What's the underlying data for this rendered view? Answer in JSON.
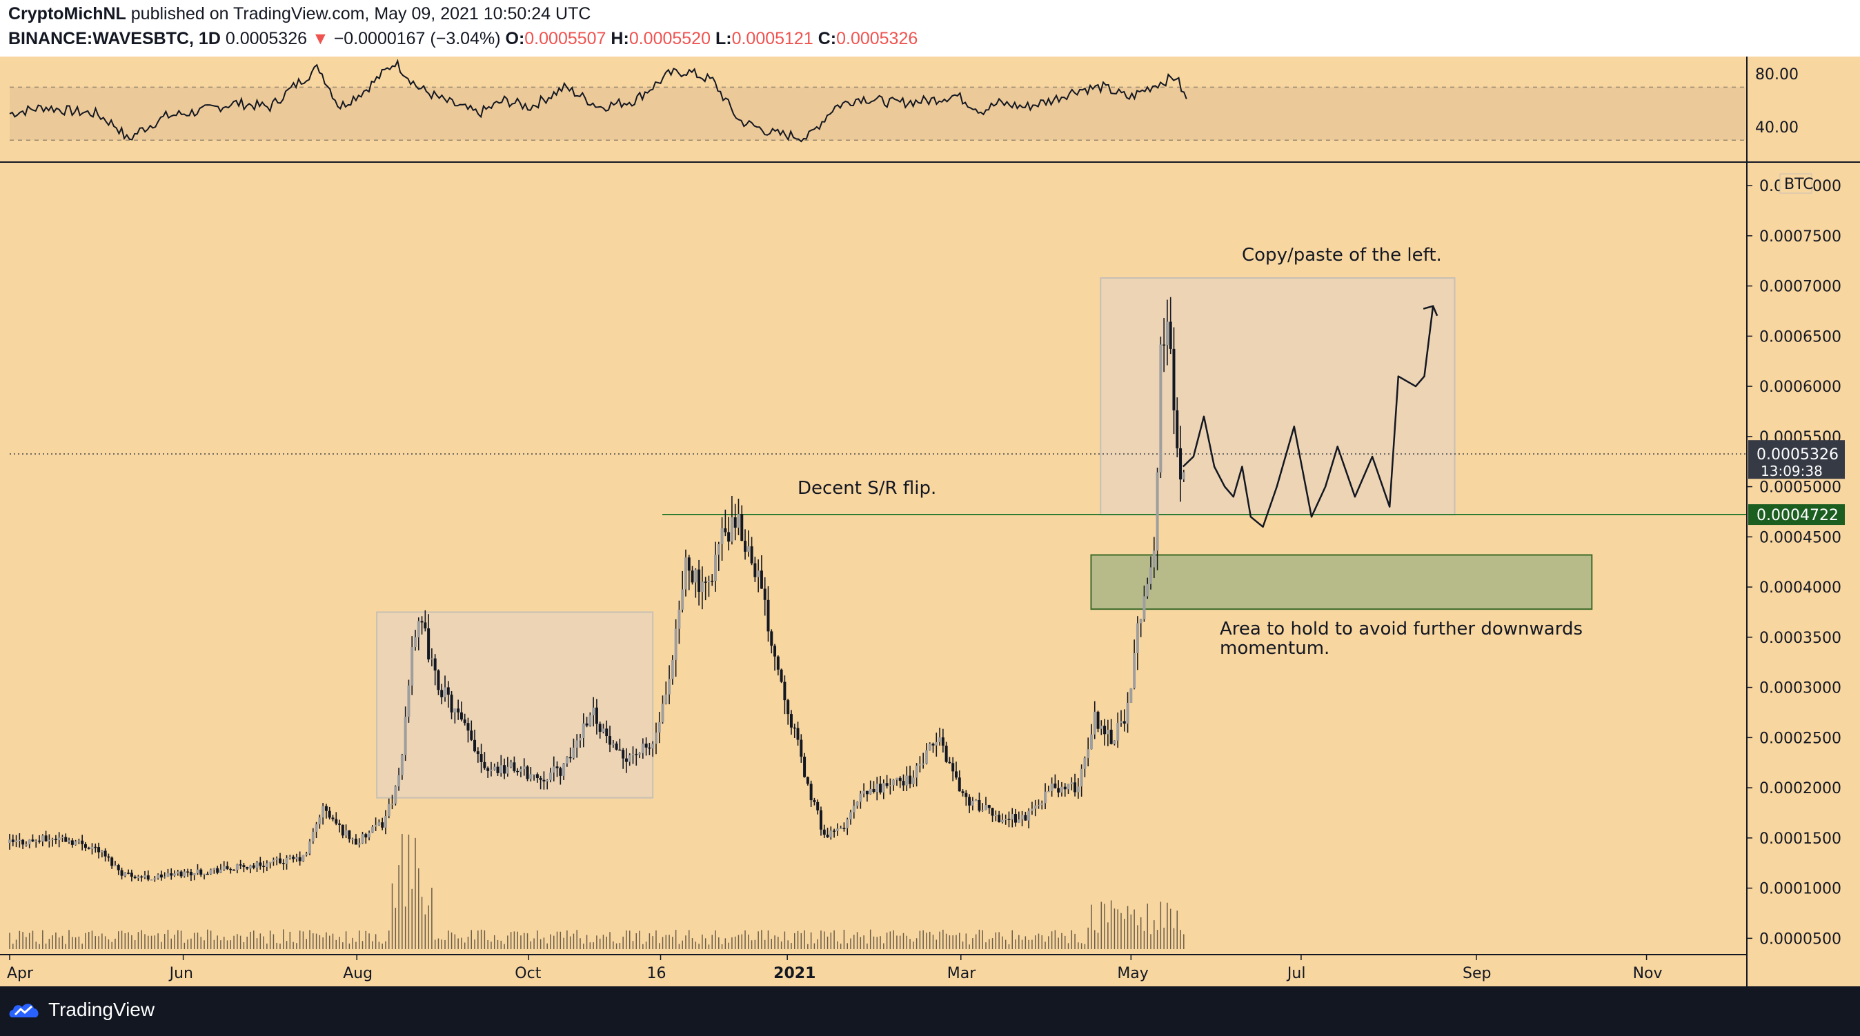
{
  "header": {
    "author": "CryptoMichNL",
    "published_text": "published on TradingView.com, May 09, 2021 10:50:24 UTC",
    "symbol": "BINANCE:WAVESBTC, 1D",
    "price": "0.0005326",
    "change_arrow": "▼",
    "change": "−0.0000167 (−3.04%)",
    "open_label": "O:",
    "open": "0.0005507",
    "high_label": "H:",
    "high": "0.0005520",
    "low_label": "L:",
    "low": "0.0005121",
    "close_label": "C:",
    "close": "0.0005326"
  },
  "footer": {
    "brand": "TradingView"
  },
  "colors": {
    "background": "#f8d6a0",
    "candle": "#131722",
    "rsi_band": "#ecc998",
    "support_zone": "#b7bb8a",
    "support_line": "#2e7d32",
    "price_label_bg": "#363a45",
    "support_label_bg": "#1b5e20"
  },
  "chart_data": [
    {
      "type": "line",
      "name": "rsi-pane",
      "yticks": [
        "80.00",
        "40.00"
      ],
      "ylim": [
        15,
        90
      ],
      "band": [
        30,
        70
      ],
      "points": [
        [
          0,
          50
        ],
        [
          0.02,
          55
        ],
        [
          0.035,
          52
        ],
        [
          0.05,
          50
        ],
        [
          0.062,
          40
        ],
        [
          0.068,
          30
        ],
        [
          0.075,
          37
        ],
        [
          0.09,
          48
        ],
        [
          0.11,
          52
        ],
        [
          0.13,
          58
        ],
        [
          0.15,
          55
        ],
        [
          0.165,
          72
        ],
        [
          0.178,
          85
        ],
        [
          0.19,
          55
        ],
        [
          0.205,
          68
        ],
        [
          0.222,
          89
        ],
        [
          0.235,
          70
        ],
        [
          0.25,
          60
        ],
        [
          0.27,
          50
        ],
        [
          0.285,
          60
        ],
        [
          0.3,
          55
        ],
        [
          0.32,
          70
        ],
        [
          0.34,
          55
        ],
        [
          0.36,
          60
        ],
        [
          0.38,
          80
        ],
        [
          0.39,
          82
        ],
        [
          0.405,
          75
        ],
        [
          0.42,
          45
        ],
        [
          0.44,
          35
        ],
        [
          0.46,
          32
        ],
        [
          0.475,
          55
        ],
        [
          0.49,
          62
        ],
        [
          0.51,
          58
        ],
        [
          0.53,
          60
        ],
        [
          0.545,
          64
        ],
        [
          0.56,
          52
        ],
        [
          0.57,
          58
        ],
        [
          0.585,
          55
        ],
        [
          0.6,
          60
        ],
        [
          0.615,
          68
        ],
        [
          0.63,
          70
        ],
        [
          0.645,
          62
        ],
        [
          0.66,
          72
        ],
        [
          0.672,
          78
        ],
        [
          0.678,
          60
        ]
      ],
      "x_range": [
        0,
        1
      ]
    },
    {
      "type": "bar",
      "name": "candles-ohlc",
      "unit": "BTC",
      "y_ticks": [
        "0.0008000",
        "0.0007500",
        "0.0007000",
        "0.0006500",
        "0.0006000",
        "0.0005500",
        "0.0005000",
        "0.0004500",
        "0.0004000",
        "0.0003500",
        "0.0003000",
        "0.0002500",
        "0.0002000",
        "0.0001500",
        "0.0001000",
        "0.0000500"
      ],
      "ylim": [
        4.2e-05,
        0.00082
      ],
      "x_ticks": [
        "Apr",
        "Jun",
        "Aug",
        "Oct",
        "16",
        "2021",
        "Mar",
        "May",
        "Jul",
        "Sep",
        "Nov"
      ],
      "current_price_label": "0.0005326",
      "countdown_label": "13:09:38",
      "support_label": "0.0004722",
      "support_value": 0.0004722,
      "current_value": 0.0005326,
      "price_path": [
        [
          0,
          0.000145
        ],
        [
          0.03,
          0.00015
        ],
        [
          0.05,
          0.00014
        ],
        [
          0.065,
          0.000115
        ],
        [
          0.08,
          0.00011
        ],
        [
          0.1,
          0.000115
        ],
        [
          0.13,
          0.00012
        ],
        [
          0.15,
          0.000125
        ],
        [
          0.17,
          0.00013
        ],
        [
          0.18,
          0.00018
        ],
        [
          0.19,
          0.00016
        ],
        [
          0.2,
          0.000145
        ],
        [
          0.215,
          0.000165
        ],
        [
          0.225,
          0.00021
        ],
        [
          0.232,
          0.00035
        ],
        [
          0.238,
          0.00036
        ],
        [
          0.245,
          0.00031
        ],
        [
          0.255,
          0.00028
        ],
        [
          0.265,
          0.00025
        ],
        [
          0.275,
          0.00022
        ],
        [
          0.29,
          0.00022
        ],
        [
          0.305,
          0.00021
        ],
        [
          0.32,
          0.00022
        ],
        [
          0.335,
          0.00028
        ],
        [
          0.35,
          0.00023
        ],
        [
          0.37,
          0.00024
        ],
        [
          0.38,
          0.0003
        ],
        [
          0.39,
          0.00043
        ],
        [
          0.4,
          0.00039
        ],
        [
          0.41,
          0.00045
        ],
        [
          0.42,
          0.00046
        ],
        [
          0.43,
          0.00042
        ],
        [
          0.44,
          0.00034
        ],
        [
          0.45,
          0.00027
        ],
        [
          0.46,
          0.0002
        ],
        [
          0.47,
          0.00015
        ],
        [
          0.48,
          0.00016
        ],
        [
          0.49,
          0.00019
        ],
        [
          0.5,
          0.0002
        ],
        [
          0.52,
          0.00021
        ],
        [
          0.535,
          0.00025
        ],
        [
          0.55,
          0.00019
        ],
        [
          0.57,
          0.00017
        ],
        [
          0.585,
          0.00017
        ],
        [
          0.6,
          0.0002
        ],
        [
          0.615,
          0.0002
        ],
        [
          0.625,
          0.00027
        ],
        [
          0.635,
          0.00025
        ],
        [
          0.645,
          0.00028
        ],
        [
          0.65,
          0.00036
        ],
        [
          0.655,
          0.00041
        ],
        [
          0.66,
          0.00043
        ],
        [
          0.663,
          0.00064
        ],
        [
          0.667,
          0.00066
        ],
        [
          0.672,
          0.00056
        ],
        [
          0.675,
          0.00051
        ],
        [
          0.678,
          0.00053
        ]
      ],
      "x_range": [
        0,
        1
      ]
    }
  ],
  "annotations": {
    "sr_flip": "Decent S/R flip.",
    "copy_paste": "Copy/paste of the left.",
    "area_hold_line1": "Area to hold to avoid further downwards",
    "area_hold_line2": "momentum."
  }
}
